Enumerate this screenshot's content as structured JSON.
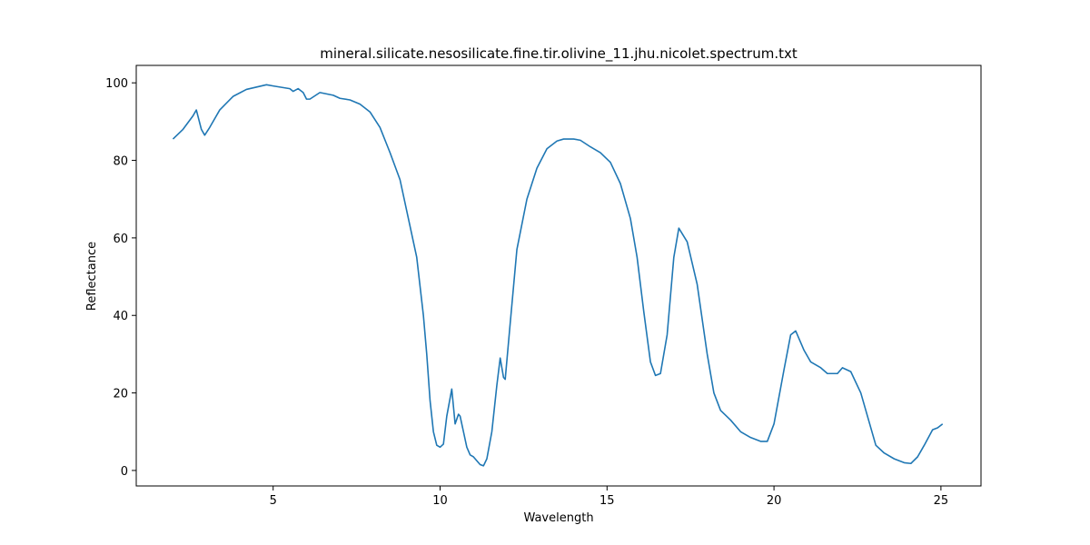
{
  "chart_data": {
    "type": "line",
    "title": "mineral.silicate.nesosilicate.fine.tir.olivine_11.jhu.nicolet.spectrum.txt",
    "x_label": "Wavelength",
    "y_label": "Reflectance",
    "xlim": [
      0.9,
      26.2
    ],
    "ylim": [
      -4,
      104.5
    ],
    "xticks": [
      5,
      10,
      15,
      20,
      25
    ],
    "yticks": [
      0,
      20,
      40,
      60,
      80,
      100
    ],
    "series": [
      {
        "name": "olivine_11",
        "color": "#1f77b4",
        "x": [
          2.0,
          2.3,
          2.6,
          2.7,
          2.85,
          2.95,
          3.1,
          3.4,
          3.8,
          4.2,
          4.8,
          5.0,
          5.5,
          5.6,
          5.75,
          5.9,
          6.0,
          6.1,
          6.4,
          6.8,
          7.0,
          7.3,
          7.6,
          7.9,
          8.2,
          8.5,
          8.8,
          9.1,
          9.3,
          9.5,
          9.6,
          9.7,
          9.8,
          9.9,
          10.0,
          10.1,
          10.2,
          10.35,
          10.45,
          10.55,
          10.6,
          10.7,
          10.8,
          10.9,
          11.0,
          11.2,
          11.3,
          11.4,
          11.55,
          11.7,
          11.8,
          11.9,
          11.95,
          12.1,
          12.3,
          12.6,
          12.9,
          13.2,
          13.5,
          13.7,
          14.0,
          14.2,
          14.5,
          14.8,
          15.1,
          15.4,
          15.7,
          15.9,
          16.1,
          16.3,
          16.45,
          16.6,
          16.8,
          17.0,
          17.15,
          17.4,
          17.7,
          18.0,
          18.2,
          18.4,
          18.7,
          19.0,
          19.3,
          19.6,
          19.8,
          20.0,
          20.3,
          20.5,
          20.65,
          20.9,
          21.1,
          21.4,
          21.6,
          21.9,
          22.05,
          22.3,
          22.6,
          23.05,
          23.3,
          23.6,
          23.9,
          24.1,
          24.3,
          24.5,
          24.75,
          24.9,
          25.05
        ],
        "values": [
          85.5,
          88,
          91.5,
          93,
          88,
          86.5,
          88.5,
          93,
          96.5,
          98.3,
          99.5,
          99.2,
          98.5,
          97.8,
          98.5,
          97.5,
          95.8,
          95.8,
          97.5,
          96.8,
          96,
          95.6,
          94.5,
          92.5,
          88.5,
          82,
          75,
          63,
          55,
          40,
          30,
          18,
          10,
          6.5,
          6,
          6.8,
          14,
          21,
          12,
          14.5,
          14,
          10,
          6,
          4,
          3.5,
          1.5,
          1.2,
          3,
          10,
          22,
          29,
          24,
          23.5,
          38,
          57,
          70,
          78,
          83,
          85,
          85.5,
          85.5,
          85.2,
          83.5,
          82,
          79.5,
          74,
          65,
          55,
          41,
          28,
          24.5,
          25,
          35,
          55,
          62.5,
          59,
          48,
          30,
          20,
          15.5,
          13,
          10,
          8.5,
          7.5,
          7.5,
          12,
          26,
          35,
          36,
          31,
          28,
          26.5,
          25,
          25,
          26.5,
          25.5,
          20,
          6.5,
          4.5,
          3,
          2,
          1.8,
          3.5,
          6.5,
          10.5,
          11,
          12
        ]
      }
    ]
  }
}
